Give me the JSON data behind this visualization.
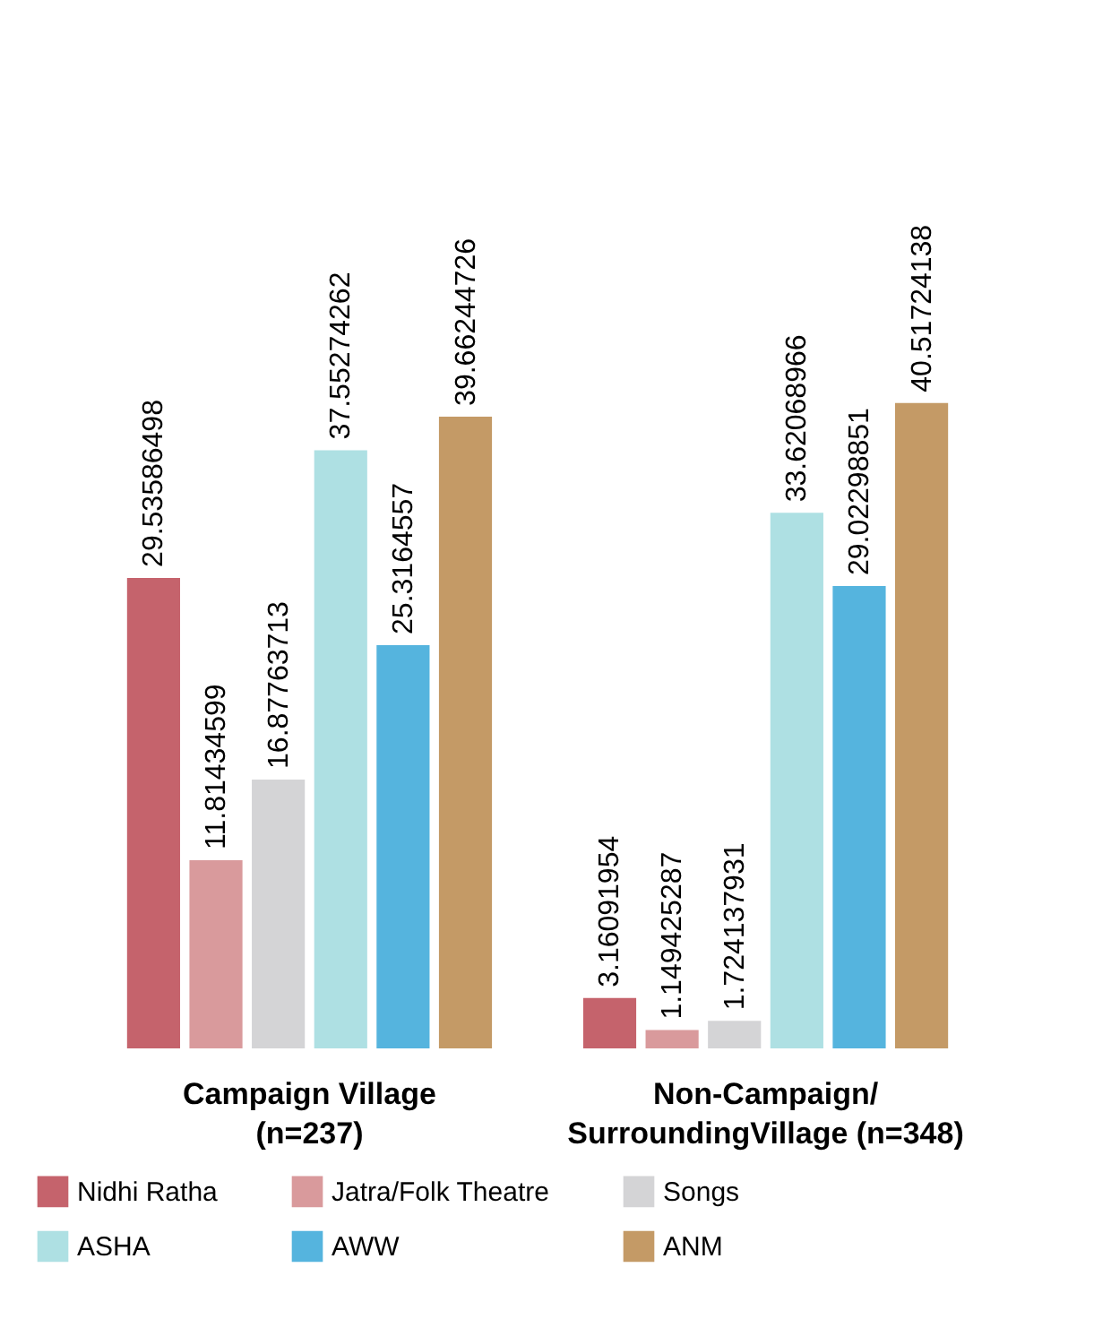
{
  "chart_data": {
    "type": "bar",
    "categories": [
      "Campaign Village\n(n=237)",
      "Non-Campaign/\nSurroundingVillage (n=348)"
    ],
    "series": [
      {
        "name": "Nidhi Ratha",
        "color": "#c5636c",
        "values": [
          29.53586498,
          3.16091954
        ]
      },
      {
        "name": "Jatra/Folk Theatre",
        "color": "#d99a9c",
        "values": [
          11.81434599,
          1.149425287
        ]
      },
      {
        "name": "Songs",
        "color": "#d4d4d6",
        "values": [
          16.87763713,
          1.724137931
        ]
      },
      {
        "name": "ASHA",
        "color": "#aee0e3",
        "values": [
          37.55274262,
          33.62068966
        ]
      },
      {
        "name": "AWW",
        "color": "#55b4de",
        "values": [
          25.3164557,
          29.02298851
        ]
      },
      {
        "name": "ANM",
        "color": "#c49a66",
        "values": [
          39.66244726,
          40.51724138
        ]
      }
    ],
    "data_labels": true,
    "legend": "bottom"
  }
}
